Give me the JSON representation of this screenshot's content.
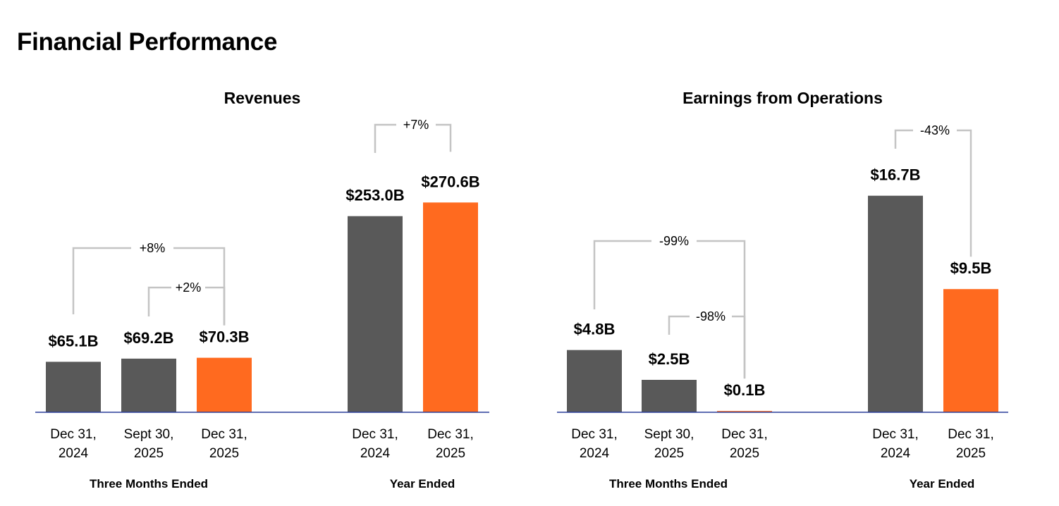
{
  "page": {
    "title": "Financial Performance"
  },
  "colors": {
    "prior": "#595959",
    "current": "#ff6a1f",
    "axis": "#2a3f9a",
    "bracket": "#c4c4c4"
  },
  "chart_data": [
    {
      "type": "bar",
      "title": "Revenues",
      "unit": "$B",
      "categories": [
        "Dec 31, 2024",
        "Sept 30, 2025",
        "Dec 31, 2025",
        "Dec 31, 2024",
        "Dec 31, 2025"
      ],
      "category_lines": [
        [
          "Dec 31,",
          "2024"
        ],
        [
          "Sept 30,",
          "2025"
        ],
        [
          "Dec 31,",
          "2025"
        ],
        [
          "Dec 31,",
          "2024"
        ],
        [
          "Dec 31,",
          "2025"
        ]
      ],
      "values": [
        65.1,
        69.2,
        70.3,
        253.0,
        270.6
      ],
      "value_labels": [
        "$65.1B",
        "$69.2B",
        "$70.3B",
        "$253.0B",
        "$270.6B"
      ],
      "bar_colors": [
        "prior",
        "prior",
        "current",
        "prior",
        "current"
      ],
      "groups": [
        {
          "label": "Three Months Ended",
          "bars": [
            0,
            1,
            2
          ]
        },
        {
          "label": "Year Ended",
          "bars": [
            3,
            4
          ]
        }
      ],
      "changes": [
        {
          "from": 0,
          "to": 2,
          "label": "+8%"
        },
        {
          "from": 1,
          "to": 2,
          "label": "+2%"
        },
        {
          "from": 3,
          "to": 4,
          "label": "+7%"
        }
      ]
    },
    {
      "type": "bar",
      "title": "Earnings from Operations",
      "unit": "$B",
      "categories": [
        "Dec 31, 2024",
        "Sept 30, 2025",
        "Dec 31, 2025",
        "Dec 31, 2024",
        "Dec 31, 2025"
      ],
      "category_lines": [
        [
          "Dec 31,",
          "2024"
        ],
        [
          "Sept 30,",
          "2025"
        ],
        [
          "Dec 31,",
          "2025"
        ],
        [
          "Dec 31,",
          "2024"
        ],
        [
          "Dec 31,",
          "2025"
        ]
      ],
      "values": [
        4.8,
        2.5,
        0.1,
        16.7,
        9.5
      ],
      "value_labels": [
        "$4.8B",
        "$2.5B",
        "$0.1B",
        "$16.7B",
        "$9.5B"
      ],
      "bar_colors": [
        "prior",
        "prior",
        "current",
        "prior",
        "current"
      ],
      "groups": [
        {
          "label": "Three Months Ended",
          "bars": [
            0,
            1,
            2
          ]
        },
        {
          "label": "Year Ended",
          "bars": [
            3,
            4
          ]
        }
      ],
      "changes": [
        {
          "from": 0,
          "to": 2,
          "label": "-99%"
        },
        {
          "from": 1,
          "to": 2,
          "label": "-98%"
        },
        {
          "from": 3,
          "to": 4,
          "label": "-43%"
        }
      ]
    }
  ]
}
